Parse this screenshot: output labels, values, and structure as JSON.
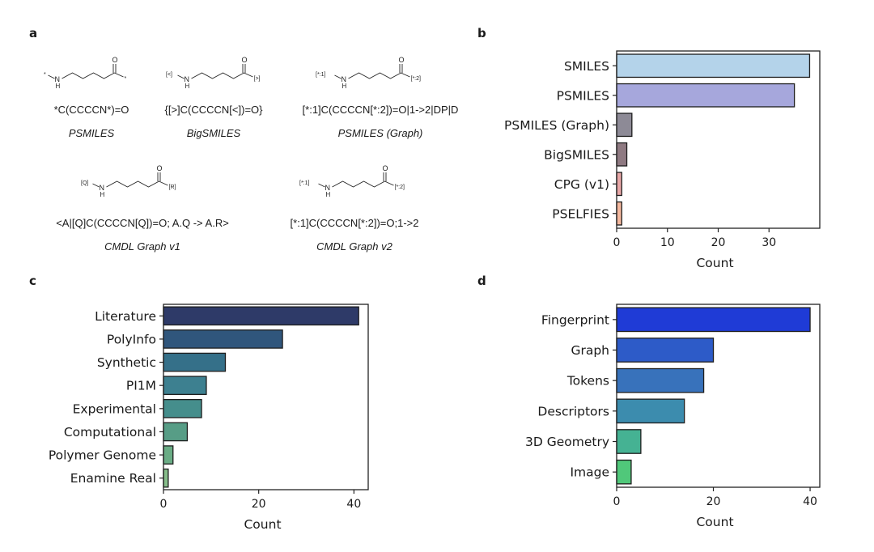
{
  "panels": {
    "a": "a",
    "b": "b",
    "c": "c",
    "d": "d"
  },
  "molecules": [
    {
      "left_label": "*",
      "n_label": "N",
      "h_label": "H",
      "right_label": "*",
      "o_label": "O",
      "string": "*C(CCCCN*)=O",
      "caption": "PSMILES"
    },
    {
      "left_label": "[<]",
      "n_label": "N",
      "h_label": "H",
      "right_label": "[>]",
      "o_label": "O",
      "string": "{[>]C(CCCCN[<])=O}",
      "caption": "BigSMILES"
    },
    {
      "left_label": "[*:1]",
      "n_label": "N",
      "h_label": "H",
      "right_label": "[*:2]",
      "o_label": "O",
      "string": "[*:1]C(CCCCN[*:2])=O|1->2|DP|D",
      "caption": "PSMILES (Graph)"
    },
    {
      "left_label": "[Q]",
      "n_label": "N",
      "h_label": "H",
      "right_label": "[R]",
      "o_label": "O",
      "string": "<A|[Q]C(CCCCN[Q])=O; A.Q -> A.R>",
      "caption": "CMDL Graph v1"
    },
    {
      "left_label": "[*:1]",
      "n_label": "N",
      "h_label": "H",
      "right_label": "[*:2]",
      "o_label": "O",
      "string": "[*:1]C(CCCCN[*:2])=O;1->2",
      "caption": "CMDL Graph v2"
    }
  ],
  "chart_data": [
    {
      "panel": "b",
      "type": "bar",
      "orientation": "horizontal",
      "categories": [
        "SMILES",
        "PSMILES",
        "PSMILES (Graph)",
        "BigSMILES",
        "CPG (v1)",
        "PSELFIES"
      ],
      "values": [
        38,
        35,
        3,
        2,
        1,
        1
      ],
      "colors": [
        "#b4d3ea",
        "#a6a7dc",
        "#8d8a96",
        "#8f7a82",
        "#e8a7a7",
        "#f4b89e"
      ],
      "xlabel": "Count",
      "xlim": [
        0,
        40
      ],
      "xticks": [
        0,
        10,
        20,
        30
      ],
      "grid": false
    },
    {
      "panel": "c",
      "type": "bar",
      "orientation": "horizontal",
      "categories": [
        "Literature",
        "PolyInfo",
        "Synthetic",
        "PI1M",
        "Experimental",
        "Computational",
        "Polymer Genome",
        "Enamine Real"
      ],
      "values": [
        41,
        25,
        13,
        9,
        8,
        5,
        2,
        1
      ],
      "colors": [
        "#2e3a68",
        "#30567c",
        "#357089",
        "#3d8090",
        "#458e8c",
        "#579d86",
        "#6aac85",
        "#86bd8a"
      ],
      "xlabel": "Count",
      "xlim": [
        0,
        43
      ],
      "xticks": [
        0,
        20,
        40
      ],
      "grid": false
    },
    {
      "panel": "d",
      "type": "bar",
      "orientation": "horizontal",
      "categories": [
        "Fingerprint",
        "Graph",
        "Tokens",
        "Descriptors",
        "3D Geometry",
        "Image"
      ],
      "values": [
        40,
        20,
        18,
        14,
        5,
        3
      ],
      "colors": [
        "#1f3bd6",
        "#2d5bc8",
        "#3872bb",
        "#3c8cae",
        "#45b293",
        "#50c87a"
      ],
      "xlabel": "Count",
      "xlim": [
        0,
        42
      ],
      "xticks": [
        0,
        20,
        40
      ],
      "grid": false
    }
  ]
}
